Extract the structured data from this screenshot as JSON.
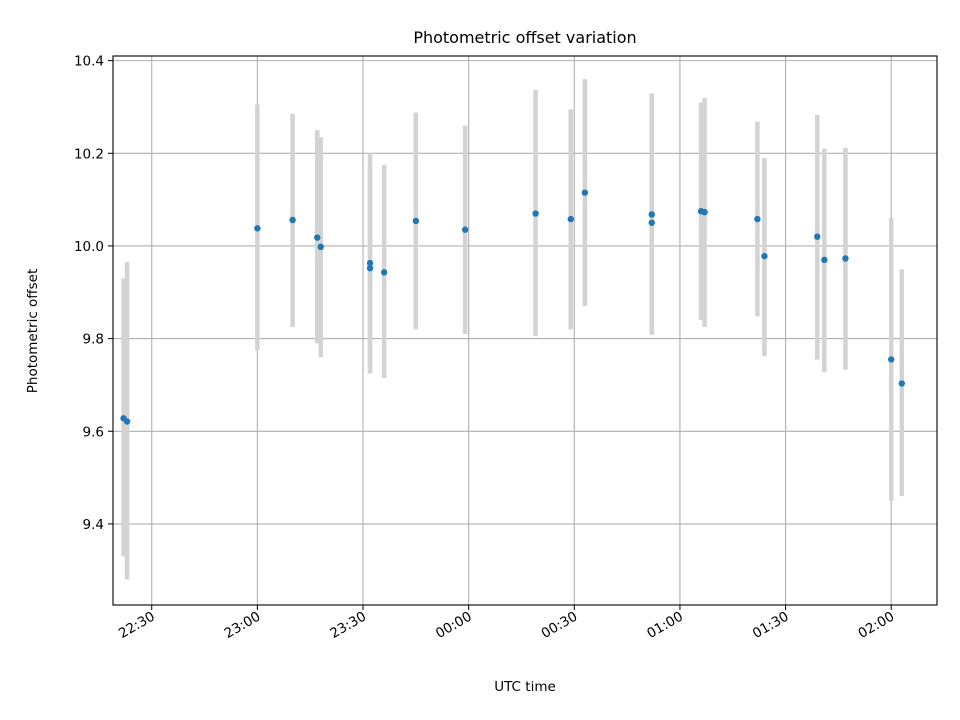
{
  "chart_data": {
    "type": "scatter",
    "title": "Photometric offset variation",
    "xlabel": "UTC time",
    "ylabel": "Photometric offset",
    "x_ticks": [
      "22:30",
      "23:00",
      "23:30",
      "00:00",
      "00:30",
      "01:00",
      "01:30",
      "02:00"
    ],
    "y_ticks": [
      "9.4",
      "9.6",
      "9.8",
      "10.0",
      "10.2",
      "10.4"
    ],
    "xlim": [
      "22:19",
      "02:13"
    ],
    "ylim": [
      9.225,
      10.41
    ],
    "grid": true,
    "colors": {
      "point": "#1f77b4",
      "errorbar": "#d3d3d3"
    },
    "series": [
      {
        "points": [
          {
            "t": "22:22",
            "y": 9.628,
            "lo": 9.33,
            "hi": 9.93
          },
          {
            "t": "22:23",
            "y": 9.621,
            "lo": 9.28,
            "hi": 9.965
          },
          {
            "t": "23:00",
            "y": 10.038,
            "lo": 9.775,
            "hi": 10.305
          },
          {
            "t": "23:10",
            "y": 10.056,
            "lo": 9.825,
            "hi": 10.285
          },
          {
            "t": "23:17",
            "y": 10.018,
            "lo": 9.79,
            "hi": 10.25
          },
          {
            "t": "23:18",
            "y": 9.998,
            "lo": 9.76,
            "hi": 10.235
          },
          {
            "t": "23:32",
            "y": 9.952,
            "lo": 9.73,
            "hi": 10.17
          },
          {
            "t": "23:32",
            "y": 9.963,
            "lo": 9.725,
            "hi": 10.2
          },
          {
            "t": "23:36",
            "y": 9.943,
            "lo": 9.715,
            "hi": 10.175
          },
          {
            "t": "23:45",
            "y": 10.054,
            "lo": 9.82,
            "hi": 10.288
          },
          {
            "t": "23:59",
            "y": 10.035,
            "lo": 9.81,
            "hi": 10.26
          },
          {
            "t": "00:19",
            "y": 10.07,
            "lo": 9.805,
            "hi": 10.337
          },
          {
            "t": "00:29",
            "y": 10.058,
            "lo": 9.82,
            "hi": 10.295
          },
          {
            "t": "00:33",
            "y": 10.115,
            "lo": 9.87,
            "hi": 10.36
          },
          {
            "t": "00:52",
            "y": 10.068,
            "lo": 9.808,
            "hi": 10.33
          },
          {
            "t": "00:52",
            "y": 10.05,
            "lo": 9.812,
            "hi": 10.29
          },
          {
            "t": "01:06",
            "y": 10.075,
            "lo": 9.84,
            "hi": 10.31
          },
          {
            "t": "01:07",
            "y": 10.073,
            "lo": 9.825,
            "hi": 10.32
          },
          {
            "t": "01:22",
            "y": 10.058,
            "lo": 9.848,
            "hi": 10.268
          },
          {
            "t": "01:24",
            "y": 9.978,
            "lo": 9.762,
            "hi": 10.19
          },
          {
            "t": "01:39",
            "y": 10.02,
            "lo": 9.755,
            "hi": 10.283
          },
          {
            "t": "01:41",
            "y": 9.97,
            "lo": 9.728,
            "hi": 10.21
          },
          {
            "t": "01:47",
            "y": 9.973,
            "lo": 9.733,
            "hi": 10.212
          },
          {
            "t": "02:00",
            "y": 9.755,
            "lo": 9.45,
            "hi": 10.06
          },
          {
            "t": "02:03",
            "y": 9.703,
            "lo": 9.46,
            "hi": 9.95
          }
        ]
      }
    ]
  }
}
